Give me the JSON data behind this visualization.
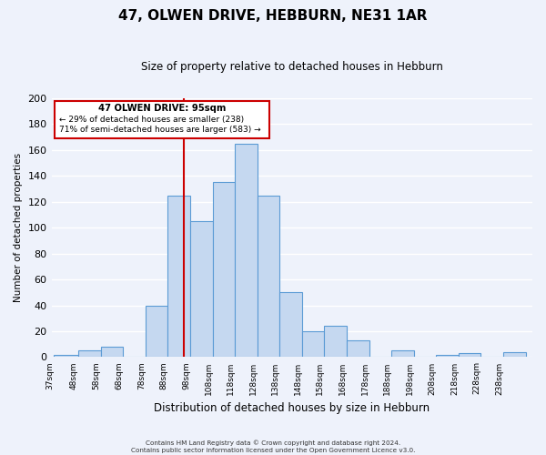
{
  "title": "47, OLWEN DRIVE, HEBBURN, NE31 1AR",
  "subtitle": "Size of property relative to detached houses in Hebburn",
  "xlabel": "Distribution of detached houses by size in Hebburn",
  "ylabel": "Number of detached properties",
  "bin_labels": [
    "37sqm",
    "48sqm",
    "58sqm",
    "68sqm",
    "78sqm",
    "88sqm",
    "98sqm",
    "108sqm",
    "118sqm",
    "128sqm",
    "138sqm",
    "148sqm",
    "158sqm",
    "168sqm",
    "178sqm",
    "188sqm",
    "198sqm",
    "208sqm",
    "218sqm",
    "228sqm",
    "238sqm"
  ],
  "bin_edges": [
    37,
    48,
    58,
    68,
    78,
    88,
    98,
    108,
    118,
    128,
    138,
    148,
    158,
    168,
    178,
    188,
    198,
    208,
    218,
    228,
    238,
    248
  ],
  "counts": [
    2,
    5,
    8,
    0,
    40,
    125,
    105,
    135,
    165,
    125,
    50,
    20,
    24,
    13,
    0,
    5,
    0,
    2,
    3,
    0,
    4
  ],
  "bar_color": "#c5d8f0",
  "bar_edge_color": "#5b9bd5",
  "property_size": 95,
  "vline_color": "#cc0000",
  "annotation_text1": "47 OLWEN DRIVE: 95sqm",
  "annotation_text2": "← 29% of detached houses are smaller (238)",
  "annotation_text3": "71% of semi-detached houses are larger (583) →",
  "box_edge_color": "#cc0000",
  "background_color": "#eef2fb",
  "plot_background": "#eef2fb",
  "ylim": [
    0,
    200
  ],
  "yticks": [
    0,
    20,
    40,
    60,
    80,
    100,
    120,
    140,
    160,
    180,
    200
  ],
  "footer1": "Contains HM Land Registry data © Crown copyright and database right 2024.",
  "footer2": "Contains public sector information licensed under the Open Government Licence v3.0."
}
